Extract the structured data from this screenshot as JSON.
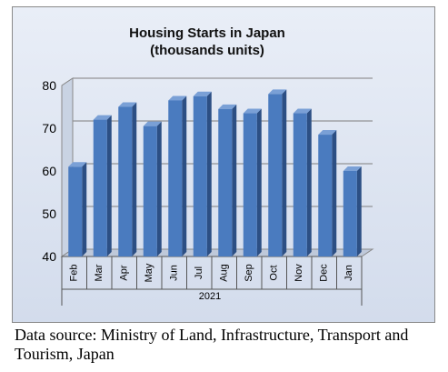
{
  "chart_data": {
    "type": "bar",
    "title": "Housing Starts in Japan",
    "subtitle": "(thousands units)",
    "categories": [
      "Feb",
      "Mar",
      "Apr",
      "May",
      "Jun",
      "Jul",
      "Aug",
      "Sep",
      "Oct",
      "Nov",
      "Dec",
      "Jan"
    ],
    "values": [
      61,
      72,
      75,
      70.5,
      76.5,
      77.5,
      74.5,
      73.5,
      78,
      73.5,
      68.5,
      60
    ],
    "year_label": "2021",
    "ylim": [
      40,
      80
    ],
    "yticks": [
      "40",
      "50",
      "60",
      "70",
      "80"
    ],
    "grid": true,
    "legend": "none",
    "bar_color": "#4a7bbf"
  },
  "caption": "Data source: Ministry of Land, Infrastructure, Transport and Tourism, Japan"
}
